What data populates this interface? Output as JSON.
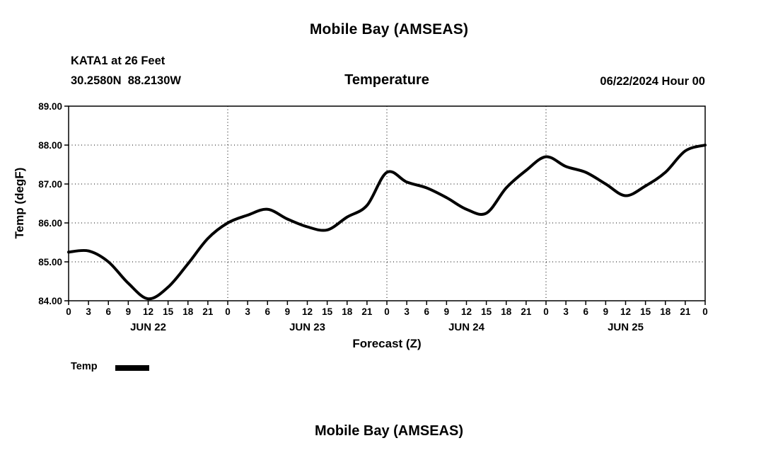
{
  "page": {
    "top_title": "Mobile Bay (AMSEAS)",
    "bottom_title": "Mobile Bay (AMSEAS)"
  },
  "header": {
    "station_line1": "KATA1 at 26 Feet",
    "station_line2": "30.2580N  88.2130W",
    "run_date": "06/22/2024 Hour 00"
  },
  "chart_data": {
    "type": "line",
    "title": "Temperature",
    "xlabel": "Forecast (Z)",
    "ylabel": "Temp (degF)",
    "ylim": [
      84.0,
      89.0
    ],
    "xlim_hours": [
      0,
      96
    ],
    "grid": true,
    "line_color": "#000000",
    "line_width": 4,
    "y_tick_values": [
      89,
      88,
      87,
      86,
      85,
      84
    ],
    "y_tick_labels": [
      "89.00",
      "88.00",
      "87.00",
      "86.00",
      "85.00",
      "84.00"
    ],
    "x_tick_step_hours": 3,
    "x_tick_labels": [
      "0",
      "3",
      "6",
      "9",
      "12",
      "15",
      "18",
      "21",
      "0",
      "3",
      "6",
      "9",
      "12",
      "15",
      "18",
      "21",
      "0",
      "3",
      "6",
      "9",
      "12",
      "15",
      "18",
      "21",
      "0",
      "3",
      "6",
      "9",
      "12",
      "15",
      "18",
      "21",
      "0"
    ],
    "day_labels": [
      "JUN 22",
      "JUN 23",
      "JUN 24",
      "JUN 25"
    ],
    "day_label_hours": [
      12,
      36,
      60,
      84
    ],
    "day_boundary_hours": [
      24,
      48,
      72
    ],
    "legend": [
      {
        "name": "Temp",
        "color": "#000000"
      }
    ],
    "series": [
      {
        "name": "Temp",
        "x_hours": [
          0,
          3,
          6,
          9,
          12,
          15,
          18,
          21,
          24,
          27,
          30,
          33,
          36,
          39,
          42,
          45,
          48,
          51,
          54,
          57,
          60,
          63,
          66,
          69,
          72,
          75,
          78,
          81,
          84,
          87,
          90,
          93,
          96
        ],
        "values": [
          85.25,
          85.28,
          85.0,
          84.45,
          84.05,
          84.35,
          84.95,
          85.6,
          86.0,
          86.2,
          86.35,
          86.1,
          85.9,
          85.82,
          86.15,
          86.45,
          87.3,
          87.05,
          86.9,
          86.65,
          86.35,
          86.25,
          86.9,
          87.35,
          87.7,
          87.45,
          87.3,
          87.0,
          86.7,
          86.95,
          87.3,
          87.85,
          88.0
        ]
      }
    ]
  }
}
